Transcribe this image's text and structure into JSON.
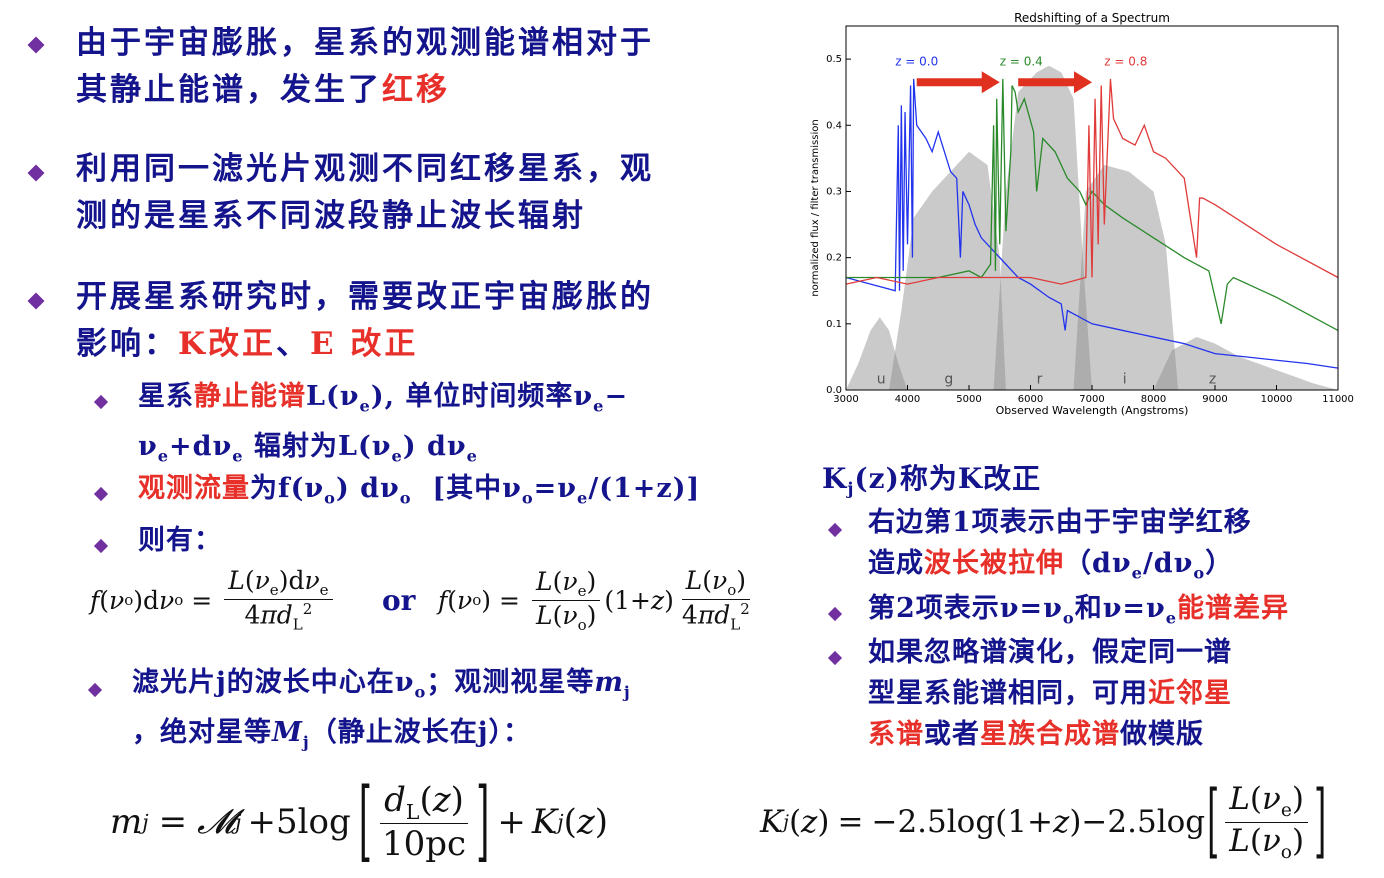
{
  "bullets": [
    {
      "line1": "由于宇宙膨胀，星系的观测能谱相对于",
      "line2a": "其静止能谱，发生了",
      "line2b": "红移"
    },
    {
      "line1": "利用同一滤光片观测不同红移星系，观",
      "line2": "测的是星系不同波段静止波长辐射"
    },
    {
      "line1": "开展星系研究时，需要改正宇宙膨胀的",
      "line2a": "影响：",
      "k": "K改正",
      "sep": "、",
      "e": "E 改正"
    }
  ],
  "sub_bullets": {
    "rest": {
      "a": "星系",
      "b": "静止能谱",
      "c": "L(ν",
      "c_sub": "e",
      "d": "), 单位时间频率ν",
      "d_sub": "e",
      "e": "−",
      "line2": "ν",
      "l2_sub1": "e",
      "l2_b": "+dν",
      "l2_sub2": "e",
      "l2_c": " 辐射为L(ν",
      "l2_sub3": "e",
      "l2_d": ") dν",
      "l2_sub4": "e"
    },
    "flux": {
      "a": "观测流量",
      "b": "为f(ν",
      "b_sub": "o",
      "c": ") dν",
      "c_sub": "o",
      "d": "  [其中ν",
      "d_sub": "o",
      "e": "=ν",
      "e_sub": "e",
      "f": "/(1+z)]"
    },
    "then": "则有：",
    "filter": {
      "a": "滤光片j的波长中心在ν",
      "a_sub": "o",
      "b": "；观测视星等",
      "m": "m",
      "m_sub": "j",
      "line2a": "，绝对星等",
      "M": "M",
      "M_sub": "j",
      "line2b": "（静止波长在j）："
    }
  },
  "eq_or": "or",
  "kcorr": {
    "title": "K",
    "title_sub": "j",
    "title_b": "(z)称为K改正",
    "items": [
      {
        "a": "右边第1项表示由于宇宙学红移",
        "b": "造成",
        "c": "波长被拉伸",
        "d": "（dν",
        "d_sub": "e",
        "e": "/dν",
        "e_sub": "o",
        "f": "）"
      },
      {
        "a": "第2项表示ν=ν",
        "a_sub": "o",
        "b": "和ν=ν",
        "b_sub": "e",
        "c": "能谱差异"
      },
      {
        "a": "如果忽略谱演化，假定同一谱",
        "b": "型星系能谱相同，可用",
        "c": "近邻星",
        "d": "系谱",
        "e": "或者",
        "f": "星族合成谱",
        "g": "做模版"
      }
    ]
  },
  "chart_data": {
    "type": "line",
    "title": "Redshifting of a Spectrum",
    "xlabel": "Observed Wavelength (Angstroms)",
    "ylabel": "normalized flux / filter transmission",
    "xlim": [
      3000,
      11000
    ],
    "ylim": [
      0.0,
      0.55
    ],
    "xticks": [
      3000,
      4000,
      5000,
      6000,
      7000,
      8000,
      9000,
      10000,
      11000
    ],
    "yticks": [
      0.0,
      0.1,
      0.2,
      0.3,
      0.4,
      0.5
    ],
    "band_labels": [
      {
        "label": "u",
        "x": 3500
      },
      {
        "label": "g",
        "x": 4600
      },
      {
        "label": "r",
        "x": 6100
      },
      {
        "label": "i",
        "x": 7500
      },
      {
        "label": "z",
        "x": 8900
      }
    ],
    "filters": [
      {
        "name": "u",
        "x": [
          3000,
          3200,
          3400,
          3550,
          3700,
          3850,
          4000
        ],
        "y": [
          0.0,
          0.04,
          0.09,
          0.11,
          0.09,
          0.04,
          0.0
        ]
      },
      {
        "name": "g",
        "x": [
          3700,
          3900,
          4100,
          4400,
          4700,
          5000,
          5300,
          5500,
          5600
        ],
        "y": [
          0.0,
          0.12,
          0.26,
          0.3,
          0.33,
          0.36,
          0.34,
          0.2,
          0.0
        ]
      },
      {
        "name": "r",
        "x": [
          5400,
          5600,
          5800,
          6100,
          6300,
          6500,
          6700,
          6850,
          7000
        ],
        "y": [
          0.0,
          0.3,
          0.45,
          0.48,
          0.49,
          0.48,
          0.44,
          0.2,
          0.0
        ]
      },
      {
        "name": "i",
        "x": [
          6700,
          6900,
          7200,
          7600,
          8000,
          8200,
          8400
        ],
        "y": [
          0.0,
          0.3,
          0.34,
          0.33,
          0.3,
          0.22,
          0.0
        ]
      },
      {
        "name": "z",
        "x": [
          8000,
          8300,
          8700,
          9000,
          9400,
          10000,
          10600,
          11000
        ],
        "y": [
          0.0,
          0.06,
          0.08,
          0.07,
          0.05,
          0.03,
          0.01,
          0.0
        ]
      }
    ],
    "series": [
      {
        "name": "z = 0.0",
        "color": "#2233ee",
        "x": [
          3000,
          3400,
          3800,
          3850,
          3870,
          3900,
          3930,
          3960,
          4000,
          4050,
          4080,
          4100,
          4150,
          4300,
          4400,
          4500,
          4700,
          4800,
          4860,
          4900,
          5000,
          5100,
          5200,
          5400,
          5600,
          5800,
          6000,
          6300,
          6500,
          6563,
          6600,
          7000,
          7500,
          8000,
          8500,
          9000,
          9500,
          10000,
          10500,
          11000
        ],
        "y": [
          0.17,
          0.16,
          0.15,
          0.4,
          0.15,
          0.43,
          0.18,
          0.42,
          0.22,
          0.46,
          0.2,
          0.47,
          0.4,
          0.38,
          0.36,
          0.39,
          0.33,
          0.32,
          0.2,
          0.3,
          0.28,
          0.25,
          0.23,
          0.21,
          0.19,
          0.17,
          0.16,
          0.14,
          0.13,
          0.09,
          0.12,
          0.1,
          0.09,
          0.08,
          0.07,
          0.055,
          0.05,
          0.045,
          0.04,
          0.033
        ]
      },
      {
        "name": "z = 0.4",
        "color": "#2a8a2a",
        "x": [
          3000,
          3500,
          4000,
          4500,
          5000,
          5200,
          5350,
          5400,
          5430,
          5450,
          5500,
          5550,
          5600,
          5680,
          5700,
          5750,
          5800,
          5900,
          6050,
          6100,
          6200,
          6400,
          6600,
          6800,
          6900,
          7000,
          7200,
          7500,
          8000,
          8500,
          8900,
          9100,
          9200,
          9300,
          10000,
          11000
        ],
        "y": [
          0.17,
          0.17,
          0.17,
          0.17,
          0.18,
          0.17,
          0.19,
          0.4,
          0.18,
          0.44,
          0.22,
          0.47,
          0.24,
          0.36,
          0.46,
          0.45,
          0.42,
          0.44,
          0.39,
          0.3,
          0.38,
          0.36,
          0.32,
          0.3,
          0.28,
          0.3,
          0.28,
          0.26,
          0.23,
          0.2,
          0.18,
          0.1,
          0.16,
          0.17,
          0.14,
          0.09
        ]
      },
      {
        "name": "z = 0.8",
        "color": "#e03a3a",
        "x": [
          3000,
          3500,
          4000,
          4500,
          5000,
          5500,
          6000,
          6500,
          6900,
          6950,
          7000,
          7050,
          7100,
          7150,
          7200,
          7300,
          7350,
          7500,
          7700,
          7850,
          8000,
          8200,
          8500,
          8700,
          8750,
          8800,
          9000,
          9500,
          10000,
          11000
        ],
        "y": [
          0.16,
          0.17,
          0.16,
          0.17,
          0.17,
          0.17,
          0.17,
          0.16,
          0.17,
          0.4,
          0.17,
          0.44,
          0.22,
          0.46,
          0.25,
          0.47,
          0.41,
          0.38,
          0.37,
          0.4,
          0.36,
          0.35,
          0.32,
          0.2,
          0.29,
          0.29,
          0.28,
          0.25,
          0.22,
          0.17
        ]
      }
    ],
    "arrows": [
      {
        "from": 4150,
        "to": 5500,
        "y": 0.465
      },
      {
        "from": 5800,
        "to": 7000,
        "y": 0.465
      }
    ],
    "grid": false
  }
}
